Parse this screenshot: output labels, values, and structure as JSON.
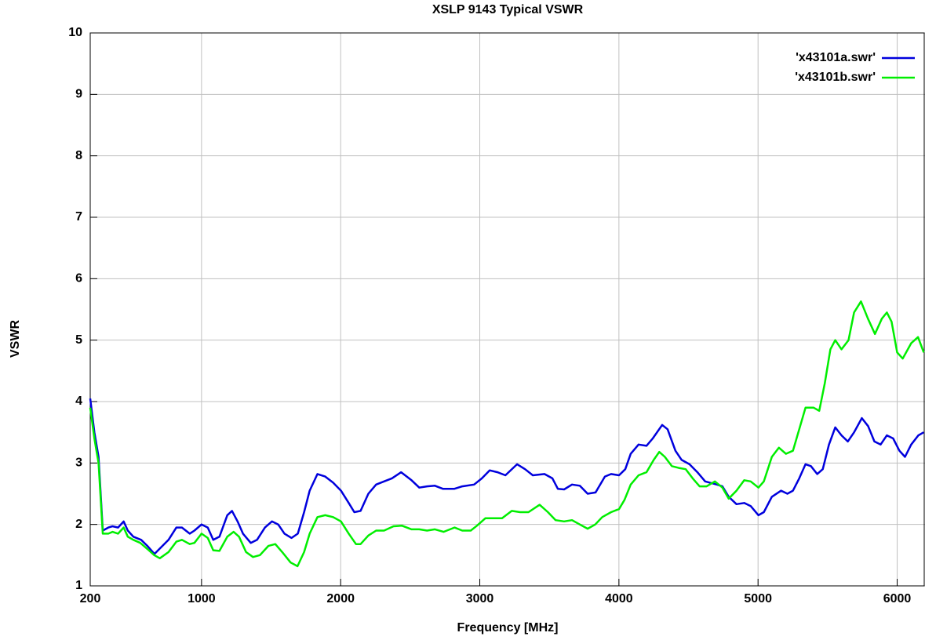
{
  "chart_data": {
    "type": "line",
    "title": "XSLP 9143 Typical VSWR",
    "x_label": "Frequency [MHz]",
    "y_label": "VSWR",
    "xlim": [
      200,
      6200
    ],
    "ylim": [
      1,
      10
    ],
    "xticks": [
      200,
      1000,
      2000,
      3000,
      4000,
      5000,
      6000
    ],
    "yticks": [
      1,
      2,
      3,
      4,
      5,
      6,
      7,
      8,
      9,
      10
    ],
    "grid": true,
    "legend": "top-right",
    "series": [
      {
        "name": "'x43101a.swr'",
        "color": "#0000dd",
        "x": [
          200,
          230,
          260,
          290,
          330,
          360,
          400,
          440,
          470,
          510,
          566,
          611,
          662,
          763,
          819,
          859,
          915,
          949,
          1000,
          1045,
          1084,
          1129,
          1185,
          1219,
          1259,
          1298,
          1354,
          1399,
          1456,
          1506,
          1551,
          1596,
          1647,
          1692,
          1737,
          1777,
          1833,
          1889,
          1946,
          2002,
          2058,
          2098,
          2143,
          2199,
          2255,
          2312,
          2368,
          2435,
          2509,
          2565,
          2621,
          2677,
          2734,
          2818,
          2874,
          2959,
          3015,
          3071,
          3128,
          3184,
          3268,
          3325,
          3381,
          3465,
          3522,
          3561,
          3606,
          3663,
          3719,
          3775,
          3832,
          3899,
          3944,
          4001,
          4046,
          4085,
          4141,
          4198,
          4243,
          4311,
          4350,
          4406,
          4451,
          4507,
          4564,
          4620,
          4704,
          4744,
          4789,
          4845,
          4901,
          4947,
          5003,
          5042,
          5099,
          5166,
          5211,
          5251,
          5296,
          5341,
          5380,
          5425,
          5465,
          5510,
          5555,
          5600,
          5645,
          5690,
          5746,
          5791,
          5836,
          5881,
          5926,
          5971,
          6016,
          6056,
          6101,
          6152,
          6191
        ],
        "values": [
          4.05,
          3.5,
          3.1,
          1.9,
          1.95,
          1.97,
          1.95,
          2.05,
          1.9,
          1.8,
          1.75,
          1.65,
          1.52,
          1.75,
          1.95,
          1.95,
          1.85,
          1.9,
          2.0,
          1.95,
          1.75,
          1.8,
          2.15,
          2.22,
          2.05,
          1.85,
          1.7,
          1.75,
          1.95,
          2.05,
          2.0,
          1.85,
          1.78,
          1.85,
          2.2,
          2.55,
          2.82,
          2.78,
          2.68,
          2.55,
          2.35,
          2.2,
          2.22,
          2.5,
          2.65,
          2.7,
          2.75,
          2.85,
          2.72,
          2.6,
          2.62,
          2.63,
          2.58,
          2.58,
          2.62,
          2.65,
          2.75,
          2.88,
          2.85,
          2.8,
          2.98,
          2.9,
          2.8,
          2.82,
          2.75,
          2.58,
          2.57,
          2.65,
          2.63,
          2.5,
          2.52,
          2.78,
          2.82,
          2.8,
          2.9,
          3.15,
          3.3,
          3.28,
          3.4,
          3.62,
          3.55,
          3.2,
          3.05,
          2.98,
          2.85,
          2.7,
          2.65,
          2.62,
          2.45,
          2.33,
          2.35,
          2.3,
          2.15,
          2.2,
          2.45,
          2.55,
          2.5,
          2.55,
          2.75,
          2.98,
          2.95,
          2.82,
          2.9,
          3.3,
          3.58,
          3.45,
          3.35,
          3.5,
          3.73,
          3.6,
          3.35,
          3.3,
          3.45,
          3.4,
          3.2,
          3.1,
          3.3,
          3.45,
          3.5
        ]
      },
      {
        "name": "'x43101b.swr'",
        "color": "#00ee00",
        "x": [
          200,
          230,
          260,
          290,
          330,
          360,
          400,
          440,
          470,
          510,
          560,
          611,
          660,
          700,
          763,
          819,
          859,
          915,
          949,
          1000,
          1045,
          1084,
          1129,
          1185,
          1230,
          1270,
          1320,
          1370,
          1420,
          1480,
          1530,
          1580,
          1640,
          1690,
          1737,
          1777,
          1833,
          1889,
          1946,
          2002,
          2058,
          2110,
          2143,
          2199,
          2255,
          2312,
          2380,
          2440,
          2510,
          2565,
          2621,
          2677,
          2740,
          2818,
          2874,
          2935,
          2980,
          3040,
          3100,
          3160,
          3230,
          3290,
          3350,
          3430,
          3490,
          3545,
          3606,
          3663,
          3719,
          3775,
          3830,
          3880,
          3944,
          4001,
          4040,
          4085,
          4141,
          4198,
          4250,
          4290,
          4330,
          4380,
          4430,
          4480,
          4530,
          4580,
          4630,
          4690,
          4744,
          4789,
          4845,
          4901,
          4947,
          5003,
          5042,
          5099,
          5150,
          5200,
          5251,
          5296,
          5341,
          5400,
          5440,
          5480,
          5520,
          5555,
          5600,
          5650,
          5690,
          5740,
          5790,
          5840,
          5890,
          5926,
          5960,
          6000,
          6040,
          6101,
          6150,
          6191
        ],
        "values": [
          3.9,
          3.4,
          3.0,
          1.85,
          1.85,
          1.88,
          1.85,
          1.95,
          1.8,
          1.75,
          1.7,
          1.6,
          1.5,
          1.45,
          1.55,
          1.72,
          1.75,
          1.68,
          1.7,
          1.85,
          1.78,
          1.58,
          1.57,
          1.8,
          1.88,
          1.8,
          1.55,
          1.47,
          1.5,
          1.65,
          1.68,
          1.55,
          1.38,
          1.32,
          1.55,
          1.85,
          2.12,
          2.15,
          2.12,
          2.05,
          1.85,
          1.68,
          1.68,
          1.82,
          1.9,
          1.9,
          1.97,
          1.98,
          1.92,
          1.92,
          1.9,
          1.92,
          1.88,
          1.95,
          1.9,
          1.9,
          1.98,
          2.1,
          2.1,
          2.1,
          2.22,
          2.2,
          2.2,
          2.32,
          2.2,
          2.07,
          2.05,
          2.07,
          2.0,
          1.93,
          2.0,
          2.12,
          2.2,
          2.25,
          2.4,
          2.65,
          2.8,
          2.85,
          3.05,
          3.18,
          3.1,
          2.95,
          2.92,
          2.9,
          2.75,
          2.62,
          2.62,
          2.7,
          2.6,
          2.42,
          2.55,
          2.72,
          2.7,
          2.6,
          2.7,
          3.1,
          3.25,
          3.15,
          3.2,
          3.55,
          3.9,
          3.9,
          3.85,
          4.3,
          4.85,
          5.0,
          4.85,
          5.0,
          5.45,
          5.63,
          5.35,
          5.1,
          5.35,
          5.45,
          5.3,
          4.8,
          4.7,
          4.95,
          5.05,
          4.8
        ]
      }
    ]
  }
}
